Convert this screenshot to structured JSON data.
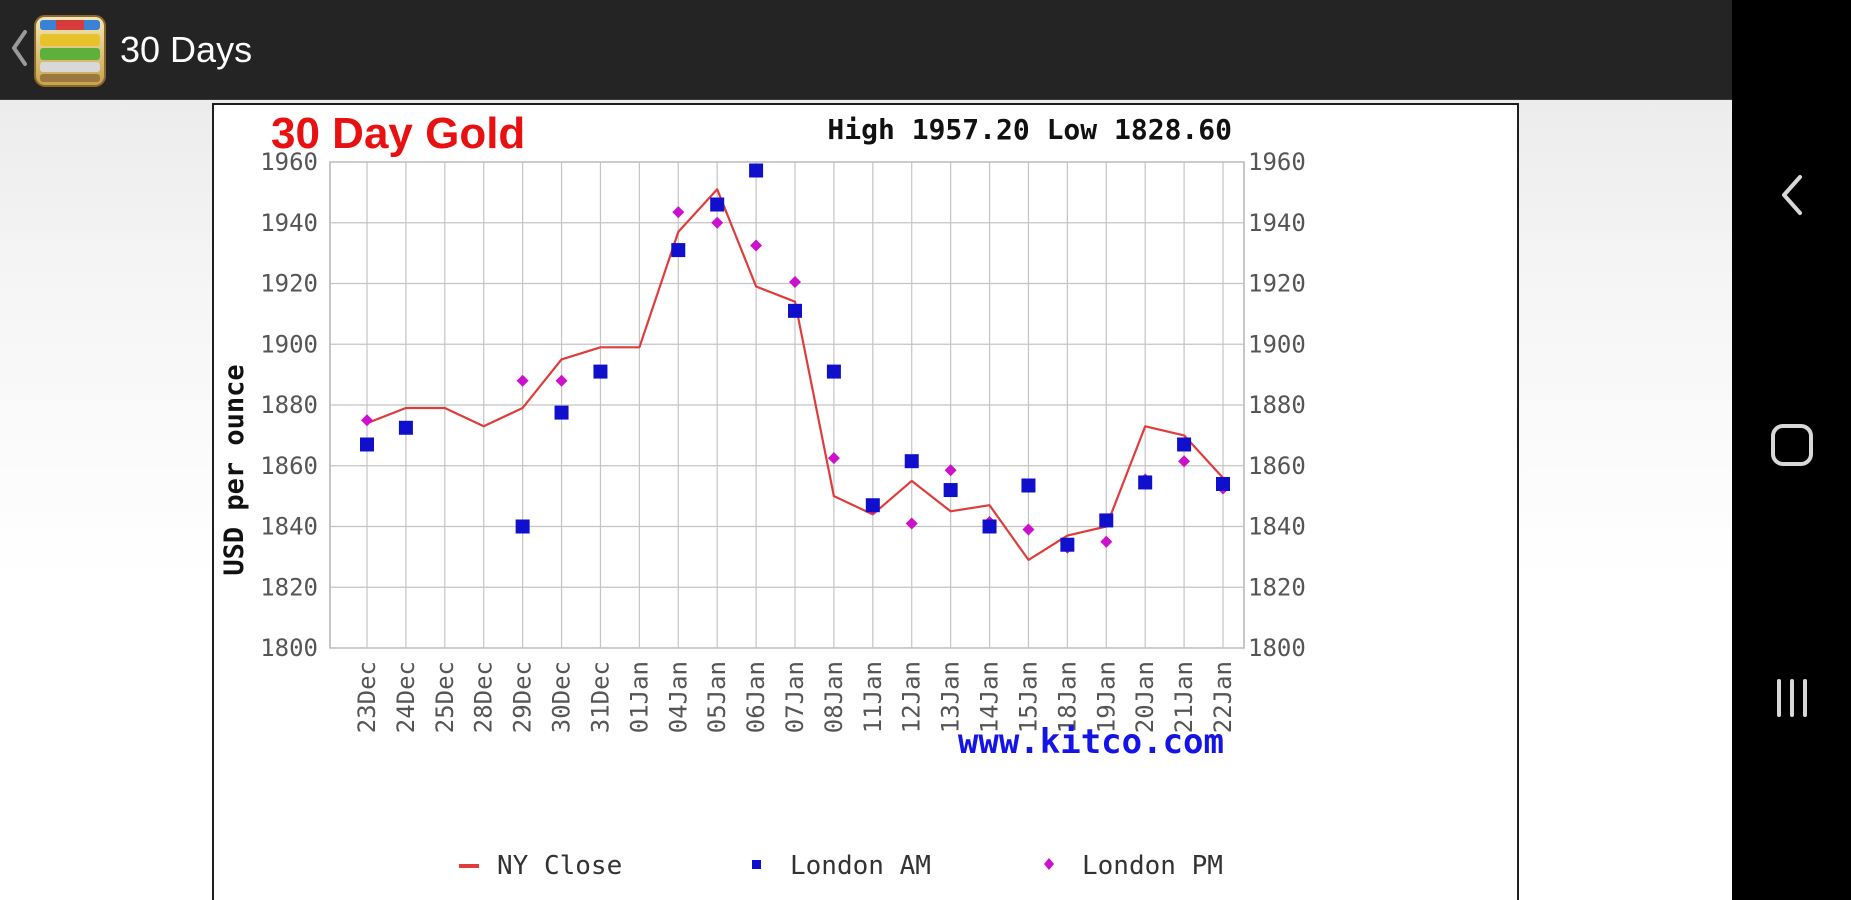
{
  "app": {
    "title": "30 Days",
    "icons": {
      "back": "chevron-left-icon",
      "app": "app-icon"
    }
  },
  "nav": {
    "back_icon": "nav-back-icon",
    "home_icon": "nav-home-icon",
    "recents_icon": "nav-recents-icon"
  },
  "chart_data": {
    "type": "line",
    "title": "30 Day Gold",
    "subtitle": "High 1957.20 Low 1828.60",
    "ylabel": "USD per ounce",
    "xlabel": "",
    "watermark": "www.kitco.com",
    "ylim": [
      1800,
      1960
    ],
    "yticks": [
      1800,
      1820,
      1840,
      1860,
      1880,
      1900,
      1920,
      1940,
      1960
    ],
    "categories": [
      "23Dec",
      "24Dec",
      "25Dec",
      "28Dec",
      "29Dec",
      "30Dec",
      "31Dec",
      "01Jan",
      "04Jan",
      "05Jan",
      "06Jan",
      "07Jan",
      "08Jan",
      "11Jan",
      "12Jan",
      "13Jan",
      "14Jan",
      "15Jan",
      "18Jan",
      "19Jan",
      "20Jan",
      "21Jan",
      "22Jan"
    ],
    "grid": true,
    "legend_position": "bottom",
    "series": [
      {
        "name": "NY Close",
        "kind": "line",
        "color": "#e03c3c",
        "values": [
          1874,
          1879,
          1879,
          1873,
          1879,
          1895,
          1899,
          1899,
          1937,
          1951,
          1919,
          1914,
          1850,
          1844,
          1855,
          1845,
          1847,
          1829,
          1837,
          1840,
          1873,
          1870,
          1856
        ]
      },
      {
        "name": "London AM",
        "kind": "square",
        "color": "#1010cc",
        "values": [
          1867,
          1872.5,
          null,
          null,
          1840,
          1877.5,
          1891,
          null,
          1931,
          1946,
          1957.2,
          1911,
          1891,
          1847,
          1861.5,
          1852,
          1840,
          1853.5,
          1834,
          1842,
          1854.5,
          1867,
          1854
        ]
      },
      {
        "name": "London PM",
        "kind": "diamond",
        "color": "#cc10cc",
        "values": [
          1875,
          null,
          null,
          null,
          1888,
          1888,
          null,
          null,
          1943.5,
          1940,
          1932.5,
          1920.5,
          1862.5,
          1846,
          1841,
          1858.5,
          1841.5,
          1839,
          1833,
          1835,
          1855.5,
          1861.5,
          1852.5
        ]
      }
    ]
  }
}
